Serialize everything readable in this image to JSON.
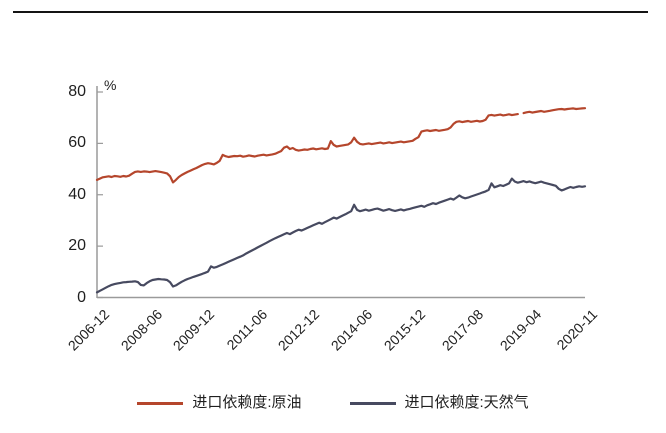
{
  "chart_data": {
    "type": "line",
    "title": "",
    "unit_label": "%",
    "ylim": [
      0,
      80
    ],
    "yticks": [
      0,
      20,
      40,
      60,
      80
    ],
    "ytick_labels": [
      "0",
      "20",
      "40",
      "60",
      "80"
    ],
    "xtick_labels": [
      "2006-12",
      "2008-06",
      "2009-12",
      "2011-06",
      "2012-12",
      "2014-06",
      "2015-12",
      "2017-08",
      "2019-04",
      "2020-11"
    ],
    "xtick_month_index": [
      0,
      18,
      36,
      54,
      72,
      90,
      108,
      128,
      148,
      167
    ],
    "x_start": "2006-12",
    "x_end": "2020-11",
    "x_frequency": "monthly",
    "grid": false,
    "legend_position": "bottom",
    "axis_color": "#9a9a9a",
    "text_color": "#1f1f1f",
    "top_rule_color": "#141414",
    "series": [
      {
        "name": "进口依赖度:原油",
        "key": "crude-oil",
        "color": "#b5462c",
        "gap_month_index": 145,
        "values": [
          45.8,
          46.3,
          46.8,
          47.0,
          47.2,
          46.9,
          47.3,
          47.2,
          47.0,
          47.3,
          47.1,
          47.4,
          48.2,
          48.9,
          49.1,
          48.9,
          49.1,
          49.0,
          48.8,
          49.0,
          49.2,
          49.0,
          48.8,
          48.6,
          48.3,
          47.2,
          44.8,
          45.8,
          46.9,
          47.7,
          48.3,
          48.9,
          49.4,
          49.9,
          50.4,
          51.0,
          51.6,
          52.0,
          52.3,
          52.1,
          51.8,
          52.4,
          53.2,
          55.5,
          55.0,
          54.7,
          54.9,
          55.1,
          55.0,
          55.2,
          54.8,
          55.0,
          55.3,
          55.1,
          54.9,
          55.2,
          55.4,
          55.6,
          55.3,
          55.5,
          55.7,
          56.0,
          56.5,
          57.0,
          58.3,
          58.8,
          57.8,
          58.2,
          57.5,
          57.2,
          57.4,
          57.6,
          57.5,
          57.8,
          58.0,
          57.7,
          57.9,
          58.1,
          57.8,
          58.0,
          60.9,
          59.4,
          58.8,
          59.0,
          59.2,
          59.4,
          59.6,
          60.4,
          62.2,
          60.6,
          59.8,
          59.6,
          59.8,
          60.0,
          59.7,
          59.9,
          60.1,
          60.3,
          60.0,
          60.2,
          60.4,
          60.1,
          60.3,
          60.5,
          60.7,
          60.4,
          60.6,
          60.8,
          61.0,
          61.8,
          62.4,
          64.6,
          64.9,
          65.1,
          64.8,
          65.0,
          65.2,
          64.9,
          65.1,
          65.3,
          65.5,
          66.2,
          67.6,
          68.4,
          68.6,
          68.3,
          68.5,
          68.7,
          68.4,
          68.6,
          68.8,
          68.5,
          68.7,
          69.2,
          70.9,
          71.1,
          70.8,
          71.0,
          71.2,
          70.9,
          71.1,
          71.3,
          71.0,
          71.2,
          71.4,
          71.6,
          71.8,
          72.1,
          72.3,
          72.0,
          72.2,
          72.4,
          72.6,
          72.3,
          72.5,
          72.7,
          72.9,
          73.1,
          73.3,
          73.4,
          73.2,
          73.4,
          73.5,
          73.6,
          73.4,
          73.5,
          73.6,
          73.7
        ]
      },
      {
        "name": "进口依赖度:天然气",
        "key": "natural-gas",
        "color": "#474a60",
        "values": [
          2.0,
          2.6,
          3.2,
          3.8,
          4.4,
          4.9,
          5.2,
          5.5,
          5.7,
          5.9,
          6.0,
          6.1,
          6.2,
          6.3,
          6.0,
          4.9,
          4.7,
          5.6,
          6.3,
          6.8,
          7.0,
          7.2,
          7.1,
          7.0,
          6.8,
          5.9,
          4.3,
          4.7,
          5.4,
          6.1,
          6.7,
          7.2,
          7.6,
          8.0,
          8.4,
          8.8,
          9.2,
          9.6,
          10.1,
          12.1,
          11.6,
          11.9,
          12.4,
          12.9,
          13.4,
          13.9,
          14.4,
          14.9,
          15.4,
          15.9,
          16.4,
          17.1,
          17.7,
          18.3,
          18.9,
          19.5,
          20.1,
          20.7,
          21.3,
          21.9,
          22.5,
          23.1,
          23.6,
          24.1,
          24.6,
          25.1,
          24.7,
          25.3,
          25.9,
          26.4,
          26.1,
          26.6,
          27.1,
          27.6,
          28.1,
          28.6,
          29.1,
          28.7,
          29.3,
          29.9,
          30.5,
          31.1,
          30.7,
          31.3,
          31.9,
          32.4,
          33.0,
          33.6,
          36.1,
          34.1,
          33.6,
          33.9,
          34.2,
          33.8,
          34.1,
          34.4,
          34.6,
          34.2,
          33.8,
          34.1,
          34.4,
          34.0,
          33.7,
          34.0,
          34.3,
          33.9,
          34.2,
          34.5,
          34.8,
          35.1,
          35.4,
          35.7,
          35.3,
          35.9,
          36.3,
          36.7,
          36.4,
          36.9,
          37.3,
          37.7,
          38.1,
          38.5,
          38.1,
          38.9,
          39.7,
          39.0,
          38.6,
          38.9,
          39.3,
          39.7,
          40.1,
          40.5,
          40.9,
          41.3,
          41.9,
          44.4,
          42.9,
          43.3,
          43.7,
          43.4,
          43.9,
          44.4,
          46.3,
          45.1,
          44.7,
          45.0,
          45.3,
          44.9,
          45.2,
          44.8,
          44.5,
          44.8,
          45.1,
          44.7,
          44.4,
          44.1,
          43.8,
          43.5,
          42.3,
          41.7,
          42.1,
          42.6,
          43.0,
          42.7,
          43.0,
          43.3,
          43.1,
          43.3
        ]
      }
    ]
  }
}
